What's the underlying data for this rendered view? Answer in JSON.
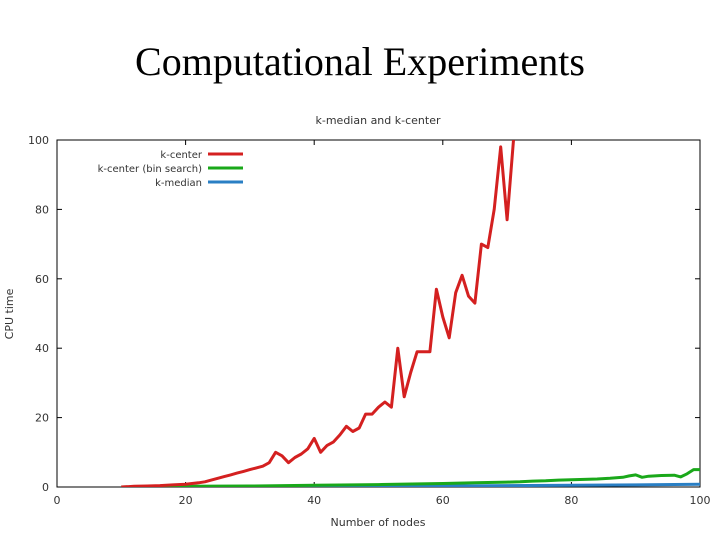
{
  "slide": {
    "title": "Computational Experiments"
  },
  "chart_data": {
    "type": "line",
    "title": "k-median and k-center",
    "xlabel": "Number of nodes",
    "ylabel": "CPU time",
    "xlim": [
      0,
      100
    ],
    "ylim": [
      0,
      100
    ],
    "xticks": [
      0,
      20,
      40,
      60,
      80,
      100
    ],
    "yticks": [
      0,
      20,
      40,
      60,
      80,
      100
    ],
    "legend_position": "top-left",
    "grid": false,
    "series": [
      {
        "name": "k-center",
        "color": "#d42020",
        "x": [
          10,
          12,
          14,
          16,
          18,
          20,
          21,
          22,
          23,
          24,
          25,
          26,
          27,
          28,
          29,
          30,
          31,
          32,
          33,
          34,
          35,
          36,
          37,
          38,
          39,
          40,
          41,
          42,
          43,
          44,
          45,
          46,
          47,
          48,
          49,
          50,
          51,
          52,
          53,
          54,
          55,
          56,
          57,
          58,
          59,
          60,
          61,
          62,
          63,
          64,
          65,
          66,
          67,
          68,
          69,
          70,
          71
        ],
        "y": [
          0,
          0.2,
          0.3,
          0.4,
          0.6,
          0.8,
          1,
          1.2,
          1.5,
          2,
          2.5,
          3,
          3.5,
          4,
          4.5,
          5,
          5.5,
          6,
          7,
          10,
          9,
          7,
          8.5,
          9.5,
          11,
          14,
          10,
          12,
          13,
          15,
          17.5,
          16,
          17,
          21,
          21,
          23,
          24.5,
          23,
          40,
          26,
          33,
          39,
          39,
          39,
          57,
          49,
          43,
          56,
          61,
          55,
          53,
          70,
          69,
          80,
          98,
          77,
          100
        ]
      },
      {
        "name": "k-center (bin search)",
        "color": "#1aa81a",
        "x": [
          10,
          20,
          30,
          40,
          50,
          60,
          65,
          70,
          72,
          74,
          76,
          78,
          80,
          82,
          84,
          86,
          88,
          89,
          90,
          91,
          92,
          94,
          96,
          97,
          98,
          99,
          100
        ],
        "y": [
          0,
          0.2,
          0.3,
          0.5,
          0.7,
          1,
          1.2,
          1.4,
          1.5,
          1.7,
          1.8,
          2,
          2.1,
          2.2,
          2.3,
          2.5,
          2.8,
          3.2,
          3.5,
          2.8,
          3.1,
          3.3,
          3.4,
          2.9,
          3.8,
          5,
          5
        ]
      },
      {
        "name": "k-median",
        "color": "#2a7fc4",
        "x": [
          10,
          20,
          30,
          40,
          50,
          60,
          70,
          80,
          90,
          100
        ],
        "y": [
          0,
          0.05,
          0.1,
          0.15,
          0.2,
          0.3,
          0.4,
          0.5,
          0.6,
          0.8
        ]
      }
    ]
  }
}
